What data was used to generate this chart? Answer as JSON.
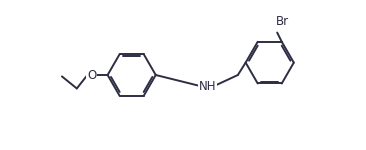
{
  "bg_color": "#ffffff",
  "line_color": "#2d2d44",
  "line_width": 1.4,
  "font_size_label": 8.5,
  "label_color": "#2d2d44",
  "br_label": "Br",
  "nh_label": "NH",
  "o_label": "O",
  "figsize": [
    3.66,
    1.5
  ],
  "dpi": 100,
  "xlim": [
    -0.5,
    9.8
  ],
  "ylim": [
    0.0,
    3.5
  ]
}
